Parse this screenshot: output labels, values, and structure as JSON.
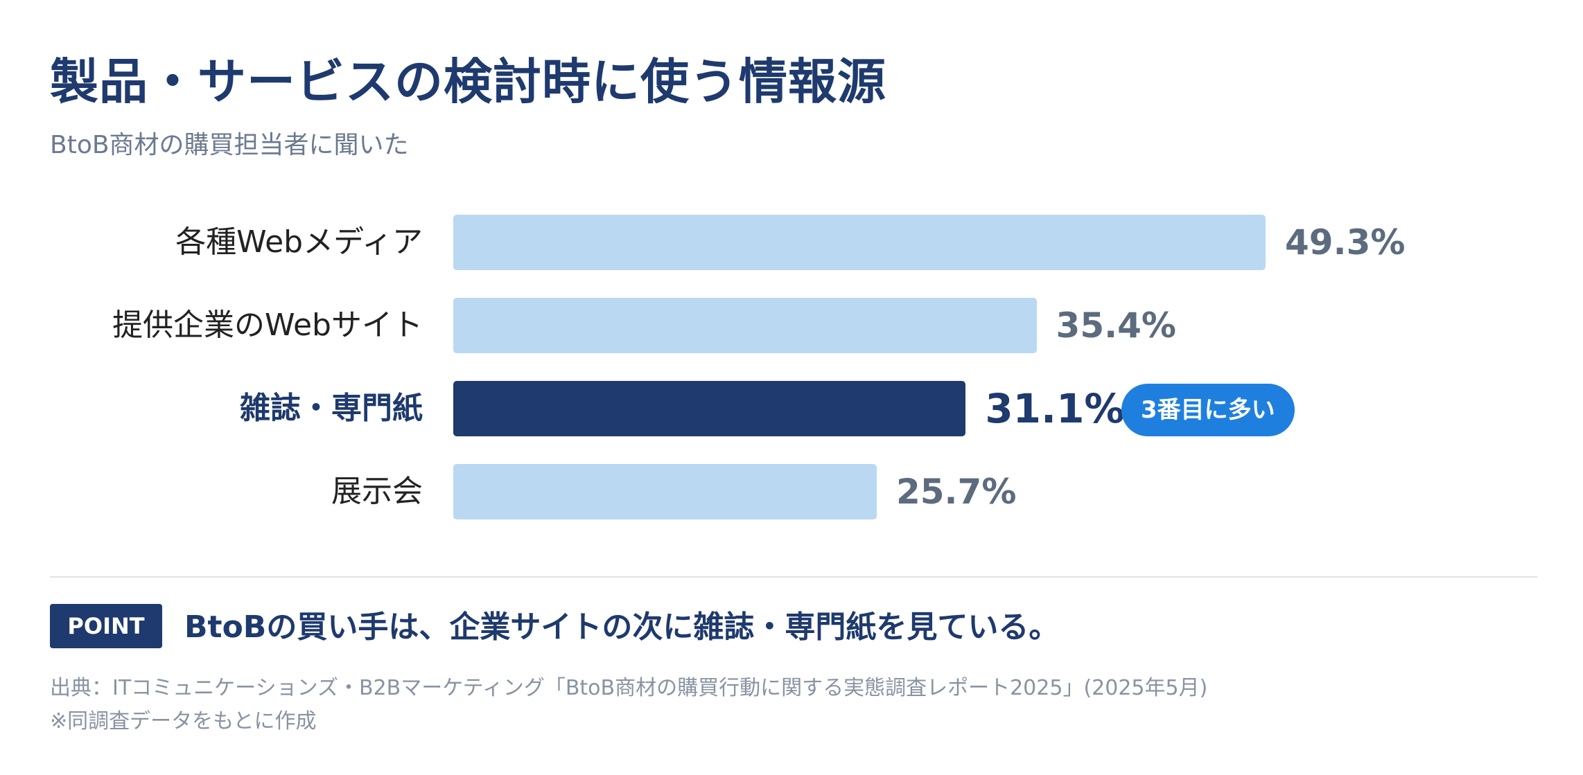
{
  "title": "製品・サービスの検討時に使う情報源",
  "subtitle": "BtoB商材の購買担当者に聞いた",
  "chart_data": {
    "type": "bar",
    "orientation": "horizontal",
    "categories": [
      "各種Webメディア",
      "提供企業のWebサイト",
      "雑誌・専門紙",
      "展示会"
    ],
    "values": [
      49.3,
      35.4,
      31.1,
      25.7
    ],
    "value_labels": [
      "49.3%",
      "35.4%",
      "31.1%",
      "25.7%"
    ],
    "highlight_index": 2,
    "highlight_badge": "3番目に多い",
    "xlim": [
      0,
      60
    ],
    "grid": false,
    "colors": {
      "bar": "#bad8f2",
      "highlight": "#1e3a6e",
      "badge": "#1f7fde"
    }
  },
  "point": {
    "badge": "POINT",
    "text": "BtoBの買い手は、企業サイトの次に雑誌・専門紙を見ている。"
  },
  "source": "出典：ITコミュニケーションズ・B2Bマーケティング「BtoB商材の購買行動に関する実態調査レポート2025」(2025年5月)",
  "note": "※同調査データをもとに作成"
}
